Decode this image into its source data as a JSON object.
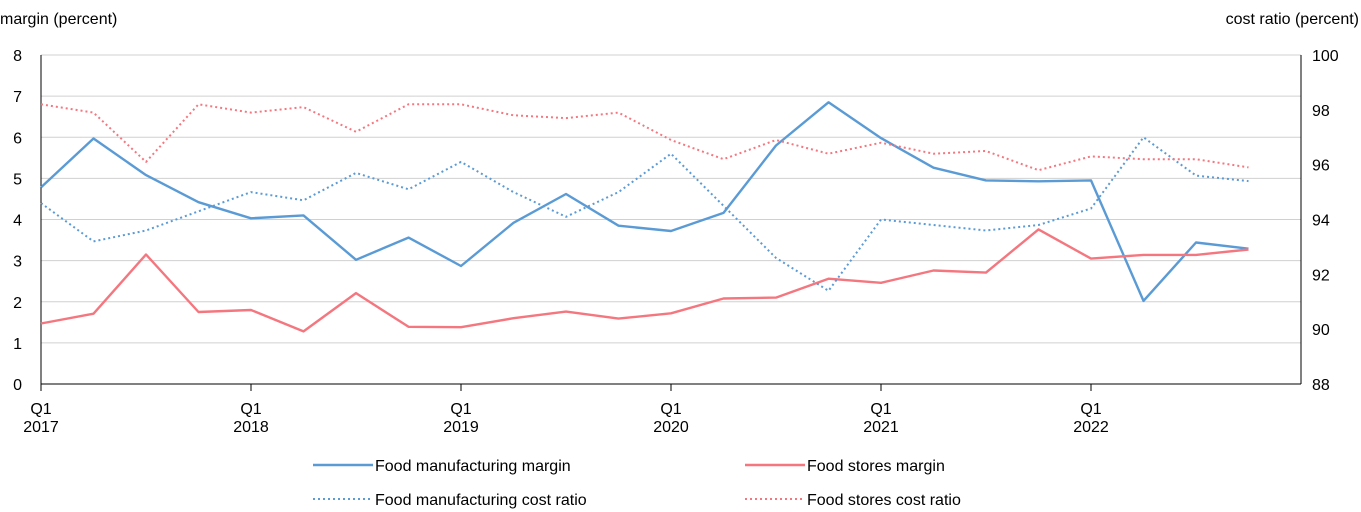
{
  "chart_data": {
    "type": "line",
    "left_axis_title": "margin (percent)",
    "right_axis_title": "cost ratio (percent)",
    "left_ticks": [
      "0",
      "1",
      "2",
      "3",
      "4",
      "5",
      "6",
      "7",
      "8"
    ],
    "right_ticks": [
      "88",
      "90",
      "92",
      "94",
      "96",
      "98",
      "100"
    ],
    "ylim_left": [
      0,
      8
    ],
    "ylim_right": [
      88,
      100
    ],
    "x": [
      "2017Q1",
      "2017Q2",
      "2017Q3",
      "2017Q4",
      "2018Q1",
      "2018Q2",
      "2018Q3",
      "2018Q4",
      "2019Q1",
      "2019Q2",
      "2019Q3",
      "2019Q4",
      "2020Q1",
      "2020Q2",
      "2020Q3",
      "2020Q4",
      "2021Q1",
      "2021Q2",
      "2021Q3",
      "2021Q4",
      "2022Q1",
      "2022Q2",
      "2022Q3",
      "2022Q4"
    ],
    "x_tick_labels": [
      {
        "q": "Q1",
        "year": "2017"
      },
      {
        "q": "Q1",
        "year": "2018"
      },
      {
        "q": "Q1",
        "year": "2019"
      },
      {
        "q": "Q1",
        "year": "2020"
      },
      {
        "q": "Q1",
        "year": "2021"
      },
      {
        "q": "Q1",
        "year": "2022"
      }
    ],
    "grid": true,
    "legend_position": "bottom",
    "series": [
      {
        "name": "Food manufacturing margin",
        "axis": "left",
        "style": "solid",
        "color": "#5b9bd5",
        "values": [
          4.78,
          5.97,
          5.08,
          4.42,
          4.03,
          4.1,
          3.02,
          3.56,
          2.87,
          3.92,
          4.62,
          3.85,
          3.72,
          4.16,
          5.8,
          6.85,
          5.98,
          5.26,
          4.95,
          4.93,
          4.95,
          2.02,
          3.44,
          3.29
        ]
      },
      {
        "name": "Food stores margin",
        "axis": "left",
        "style": "solid",
        "color": "#f4777f",
        "values": [
          1.47,
          1.71,
          3.15,
          1.75,
          1.8,
          1.28,
          2.21,
          1.39,
          1.38,
          1.6,
          1.76,
          1.59,
          1.72,
          2.08,
          2.1,
          2.56,
          2.46,
          2.76,
          2.71,
          3.76,
          3.05,
          3.14,
          3.14,
          3.27
        ]
      },
      {
        "name": "Food manufacturing cost ratio",
        "axis": "right",
        "style": "dotted",
        "color": "#5b9bd5",
        "values": [
          94.6,
          93.2,
          93.6,
          94.3,
          95.0,
          94.7,
          95.7,
          95.1,
          96.1,
          95.0,
          94.1,
          95.0,
          96.4,
          94.5,
          92.6,
          91.4,
          94.0,
          93.8,
          93.6,
          93.8,
          94.4,
          97.0,
          95.6,
          95.4
        ]
      },
      {
        "name": "Food stores cost ratio",
        "axis": "right",
        "style": "dotted",
        "color": "#f4777f",
        "values": [
          98.2,
          97.9,
          96.1,
          98.2,
          97.9,
          98.1,
          97.2,
          98.2,
          98.2,
          97.8,
          97.7,
          97.9,
          96.9,
          96.2,
          96.9,
          96.4,
          96.8,
          96.4,
          96.5,
          95.8,
          96.3,
          96.2,
          96.2,
          95.9
        ]
      }
    ]
  }
}
